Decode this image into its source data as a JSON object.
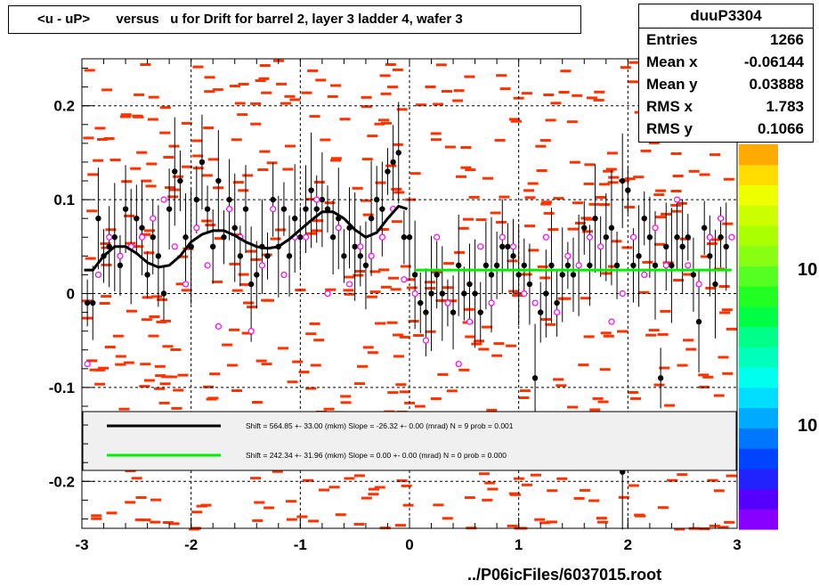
{
  "title": "<u - uP>       versus   u for Drift for barrel 2, layer 3 ladder 4, wafer 3",
  "stats": {
    "name": "duuP3304",
    "rows": [
      {
        "k": "Entries",
        "v": "1266"
      },
      {
        "k": "Mean x",
        "v": "-0.06144"
      },
      {
        "k": "Mean y",
        "v": "0.03888"
      },
      {
        "k": "RMS x",
        "v": "1.783"
      },
      {
        "k": "RMS y",
        "v": "0.1066"
      }
    ]
  },
  "footer": "../P06icFiles/6037015.root",
  "colorbar_labels": [
    "10",
    "10"
  ],
  "colors": {
    "cells": "#ff3300",
    "black_points": "#000000",
    "open_points": "#ff00ff",
    "fit_black": "#000000",
    "fit_green": "#00ee00",
    "legend_bg": "#f0f0f0"
  },
  "chart_data": {
    "type": "scatter",
    "xlim": [
      -3,
      3
    ],
    "ylim": [
      -0.25,
      0.25
    ],
    "x_ticks": [
      "-3",
      "-2",
      "-1",
      "0",
      "1",
      "2",
      "3"
    ],
    "y_ticks": [
      "-0.2",
      "-0.1",
      "0",
      "0.1",
      "0.2"
    ],
    "grid": true,
    "legend": [
      {
        "text": "Shift =   564.85 +- 33.00 (mkm) Slope =   -26.32 +- 0.00 (mrad)  N = 9 prob = 0.001",
        "color": "#000000"
      },
      {
        "text": "Shift =   242.34 +- 31.96 (mkm) Slope =     0.00 +- 0.00 (mrad)  N = 0 prob = 0.000",
        "color": "#00ee00"
      }
    ],
    "black_points": [
      [
        -2.95,
        -0.01
      ],
      [
        -2.9,
        -0.01
      ],
      [
        -2.85,
        0.08
      ],
      [
        -2.8,
        0.04
      ],
      [
        -2.75,
        0.05
      ],
      [
        -2.7,
        0.06
      ],
      [
        -2.65,
        0.03
      ],
      [
        -2.6,
        0.09
      ],
      [
        -2.55,
        0.05
      ],
      [
        -2.5,
        0.08
      ],
      [
        -2.45,
        0.07
      ],
      [
        -2.4,
        0.02
      ],
      [
        -2.35,
        0.06
      ],
      [
        -2.3,
        0.04
      ],
      [
        -2.25,
        0.0
      ],
      [
        -2.2,
        0.09
      ],
      [
        -2.15,
        0.13
      ],
      [
        -2.1,
        0.12
      ],
      [
        -2.05,
        0.06
      ],
      [
        -2.0,
        0.05
      ],
      [
        -1.95,
        0.1
      ],
      [
        -1.9,
        0.14
      ],
      [
        -1.85,
        0.09
      ],
      [
        -1.8,
        0.05
      ],
      [
        -1.75,
        0.12
      ],
      [
        -1.7,
        0.06
      ],
      [
        -1.65,
        0.1
      ],
      [
        -1.6,
        0.07
      ],
      [
        -1.55,
        0.04
      ],
      [
        -1.5,
        0.09
      ],
      [
        -1.45,
        0.01
      ],
      [
        -1.4,
        0.02
      ],
      [
        -1.35,
        0.05
      ],
      [
        -1.3,
        0.04
      ],
      [
        -1.25,
        0.1
      ],
      [
        -1.2,
        0.05
      ],
      [
        -1.15,
        0.09
      ],
      [
        -1.1,
        0.04
      ],
      [
        -1.05,
        0.08
      ],
      [
        -1.0,
        0.06
      ],
      [
        -0.95,
        0.09
      ],
      [
        -0.9,
        0.11
      ],
      [
        -0.85,
        0.09
      ],
      [
        -0.8,
        0.1
      ],
      [
        -0.75,
        0.09
      ],
      [
        -0.7,
        0.06
      ],
      [
        -0.65,
        0.08
      ],
      [
        -0.6,
        0.04
      ],
      [
        -0.55,
        0.07
      ],
      [
        -0.5,
        0.05
      ],
      [
        -0.45,
        0.04
      ],
      [
        -0.4,
        0.03
      ],
      [
        -0.35,
        0.08
      ],
      [
        -0.3,
        0.1
      ],
      [
        -0.25,
        0.09
      ],
      [
        -0.2,
        0.13
      ],
      [
        -0.15,
        0.14
      ],
      [
        -0.1,
        0.15
      ],
      [
        -0.05,
        0.06
      ],
      [
        0.0,
        0.06
      ],
      [
        0.05,
        0.02
      ],
      [
        0.1,
        -0.01
      ],
      [
        0.15,
        -0.02
      ],
      [
        0.2,
        0.0
      ],
      [
        0.25,
        0.02
      ],
      [
        0.3,
        0.0
      ],
      [
        0.35,
        -0.01
      ],
      [
        0.4,
        -0.02
      ],
      [
        0.45,
        0.03
      ],
      [
        0.5,
        0.0
      ],
      [
        0.55,
        0.01
      ],
      [
        0.6,
        0.0
      ],
      [
        0.65,
        -0.02
      ],
      [
        0.7,
        0.03
      ],
      [
        0.75,
        0.02
      ],
      [
        0.8,
        0.03
      ],
      [
        0.85,
        0.05
      ],
      [
        0.9,
        0.05
      ],
      [
        0.95,
        0.04
      ],
      [
        1.0,
        0.02
      ],
      [
        1.05,
        0.03
      ],
      [
        1.1,
        0.01
      ],
      [
        1.15,
        -0.09
      ],
      [
        1.2,
        -0.02
      ],
      [
        1.25,
        0.0
      ],
      [
        1.3,
        0.03
      ],
      [
        1.35,
        -0.01
      ],
      [
        1.4,
        0.02
      ],
      [
        1.45,
        0.03
      ],
      [
        1.5,
        0.02
      ],
      [
        1.55,
        0.03
      ],
      [
        1.6,
        0.07
      ],
      [
        1.65,
        0.03
      ],
      [
        1.7,
        0.08
      ],
      [
        1.75,
        0.05
      ],
      [
        1.8,
        0.06
      ],
      [
        1.85,
        0.07
      ],
      [
        1.9,
        0.03
      ],
      [
        1.95,
        0.12
      ],
      [
        2.0,
        0.11
      ],
      [
        2.05,
        0.03
      ],
      [
        2.1,
        0.04
      ],
      [
        2.15,
        0.08
      ],
      [
        2.2,
        0.06
      ],
      [
        2.25,
        0.03
      ],
      [
        2.3,
        -0.09
      ],
      [
        2.35,
        0.05
      ],
      [
        2.4,
        0.03
      ],
      [
        2.45,
        0.06
      ],
      [
        2.5,
        0.05
      ],
      [
        2.55,
        0.06
      ],
      [
        2.6,
        0.02
      ],
      [
        2.65,
        -0.03
      ],
      [
        2.7,
        0.07
      ],
      [
        2.75,
        0.04
      ],
      [
        2.8,
        0.01
      ],
      [
        2.85,
        0.06
      ],
      [
        2.9,
        0.05
      ],
      [
        1.95,
        -0.19
      ]
    ],
    "open_points": [
      [
        -2.95,
        -0.075
      ],
      [
        -2.85,
        0.02
      ],
      [
        -2.75,
        0.06
      ],
      [
        -2.65,
        0.04
      ],
      [
        -2.55,
        0.05
      ],
      [
        -2.45,
        0.06
      ],
      [
        -2.35,
        0.08
      ],
      [
        -2.25,
        0.1
      ],
      [
        -2.15,
        0.05
      ],
      [
        -2.05,
        0.01
      ],
      [
        -1.95,
        0.07
      ],
      [
        -1.85,
        0.03
      ],
      [
        -1.75,
        -0.035
      ],
      [
        -1.65,
        0.09
      ],
      [
        -1.55,
        0.06
      ],
      [
        -1.45,
        -0.04
      ],
      [
        -1.35,
        0.03
      ],
      [
        -1.25,
        0.09
      ],
      [
        -1.15,
        0.02
      ],
      [
        -1.05,
        0.06
      ],
      [
        -0.95,
        0.06
      ],
      [
        -0.85,
        0.1
      ],
      [
        -0.75,
        0.0
      ],
      [
        -0.65,
        0.07
      ],
      [
        -0.55,
        0.01
      ],
      [
        -0.45,
        0.05
      ],
      [
        -0.35,
        0.04
      ],
      [
        -0.25,
        0.06
      ],
      [
        -0.15,
        0.09
      ],
      [
        -0.05,
        0.015
      ],
      [
        0.05,
        0.0
      ],
      [
        0.15,
        -0.05
      ],
      [
        0.25,
        0.06
      ],
      [
        0.35,
        -0.01
      ],
      [
        0.45,
        -0.075
      ],
      [
        0.55,
        -0.03
      ],
      [
        0.65,
        0.05
      ],
      [
        0.75,
        -0.01
      ],
      [
        0.85,
        0.06
      ],
      [
        0.95,
        0.05
      ],
      [
        1.05,
        0.0
      ],
      [
        1.15,
        -0.01
      ],
      [
        1.25,
        0.06
      ],
      [
        1.35,
        -0.02
      ],
      [
        1.45,
        0.04
      ],
      [
        1.55,
        0.03
      ],
      [
        1.65,
        0.06
      ],
      [
        1.75,
        0.05
      ],
      [
        1.85,
        -0.03
      ],
      [
        1.95,
        0.0
      ],
      [
        2.05,
        0.06
      ],
      [
        2.15,
        0.02
      ],
      [
        2.25,
        0.07
      ],
      [
        2.35,
        0.03
      ],
      [
        2.45,
        0.1
      ],
      [
        2.55,
        0.03
      ],
      [
        2.65,
        0.01
      ],
      [
        2.75,
        0.06
      ],
      [
        2.85,
        0.08
      ],
      [
        2.95,
        0.06
      ]
    ],
    "fit_black": [
      [
        -2.98,
        0.025
      ],
      [
        -2.9,
        0.025
      ],
      [
        -2.8,
        0.04
      ],
      [
        -2.7,
        0.05
      ],
      [
        -2.6,
        0.05
      ],
      [
        -2.5,
        0.043
      ],
      [
        -2.4,
        0.033
      ],
      [
        -2.3,
        0.028
      ],
      [
        -2.2,
        0.03
      ],
      [
        -2.1,
        0.04
      ],
      [
        -2.0,
        0.055
      ],
      [
        -1.9,
        0.063
      ],
      [
        -1.8,
        0.067
      ],
      [
        -1.7,
        0.067
      ],
      [
        -1.6,
        0.062
      ],
      [
        -1.5,
        0.055
      ],
      [
        -1.4,
        0.05
      ],
      [
        -1.3,
        0.048
      ],
      [
        -1.2,
        0.05
      ],
      [
        -1.1,
        0.058
      ],
      [
        -1.0,
        0.068
      ],
      [
        -0.9,
        0.078
      ],
      [
        -0.8,
        0.087
      ],
      [
        -0.7,
        0.087
      ],
      [
        -0.6,
        0.08
      ],
      [
        -0.5,
        0.068
      ],
      [
        -0.4,
        0.06
      ],
      [
        -0.3,
        0.065
      ],
      [
        -0.2,
        0.08
      ],
      [
        -0.1,
        0.093
      ],
      [
        -0.02,
        0.09
      ]
    ],
    "fit_green": [
      [
        0.05,
        0.025
      ],
      [
        2.95,
        0.025
      ]
    ]
  }
}
